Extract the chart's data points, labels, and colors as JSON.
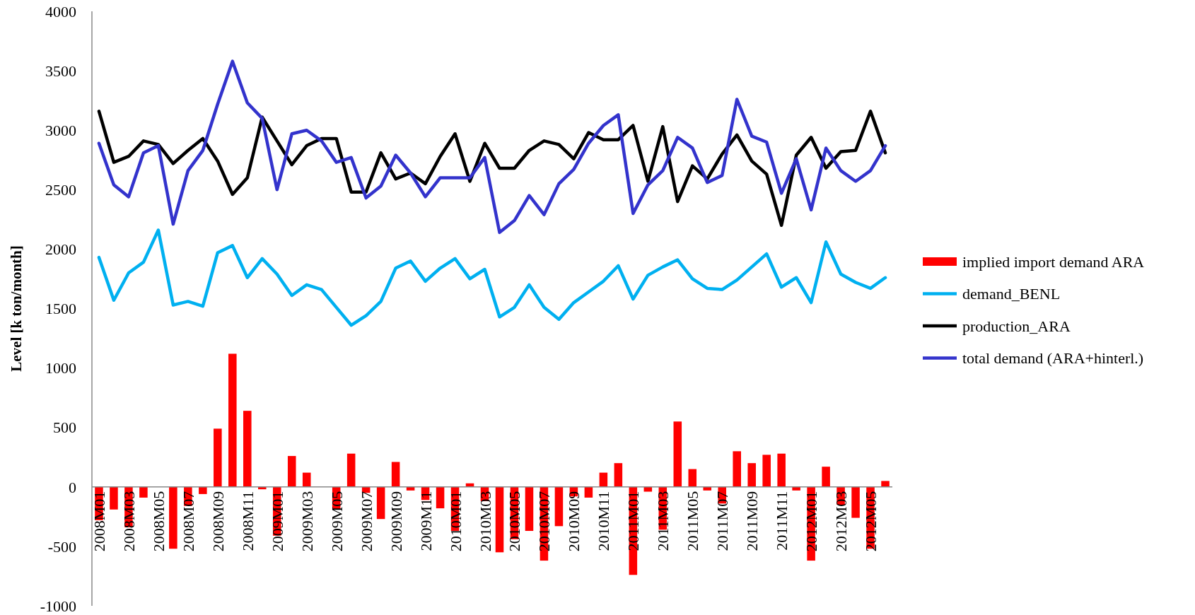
{
  "chart_data": {
    "type": "bar",
    "ylabel": "Level [k ton/month]",
    "categories": [
      "2008M01",
      null,
      "2008M03",
      null,
      "2008M05",
      null,
      "2008M07",
      null,
      "2008M09",
      null,
      "2008M11",
      null,
      "2009M01",
      null,
      "2009M03",
      null,
      "2009M05",
      null,
      "2009M07",
      null,
      "2009M09",
      null,
      "2009M11",
      null,
      "2010M01",
      null,
      "2010M03",
      null,
      "2010M05",
      null,
      "2010M07",
      null,
      "2010M09",
      null,
      "2010M11",
      null,
      "2011M01",
      null,
      "2011M03",
      null,
      "2011M05",
      null,
      "2011M07",
      null,
      "2011M09",
      null,
      "2011M11",
      null,
      "2012M01",
      null,
      "2012M03",
      null,
      "2012M05",
      null
    ],
    "series": [
      {
        "name": "implied import demand ARA",
        "color": "#ff0000",
        "values": [
          -280,
          -190,
          -340,
          -90,
          null,
          -520,
          -160,
          -60,
          490,
          1120,
          640,
          -20,
          -410,
          260,
          120,
          null,
          -190,
          280,
          -50,
          -270,
          210,
          -30,
          -110,
          -180,
          -370,
          30,
          -120,
          -550,
          -440,
          -370,
          -620,
          -330,
          -80,
          -90,
          120,
          200,
          -740,
          -40,
          -360,
          550,
          150,
          -30,
          -140,
          300,
          200,
          270,
          280,
          -30,
          -620,
          170,
          -150,
          -260,
          -520,
          50
        ]
      },
      {
        "name": "demand_BENL",
        "type": "line",
        "color": "#00b0f0",
        "values": [
          1930,
          1570,
          1800,
          1890,
          2160,
          1530,
          1560,
          1520,
          1970,
          2030,
          1760,
          1920,
          1790,
          1610,
          1700,
          1660,
          1510,
          1360,
          1440,
          1560,
          1840,
          1900,
          1730,
          1840,
          1920,
          1750,
          1830,
          1430,
          1510,
          1700,
          1510,
          1410,
          1550,
          1640,
          1730,
          1860,
          1580,
          1780,
          1850,
          1910,
          1750,
          1670,
          1660,
          1740,
          1850,
          1960,
          1680,
          1760,
          1550,
          2060,
          1790,
          1720,
          1670,
          1760
        ]
      },
      {
        "name": "production_ARA",
        "type": "line",
        "color": "#000000",
        "values": [
          3160,
          2730,
          2780,
          2910,
          2880,
          2720,
          2830,
          2930,
          2740,
          2460,
          2600,
          3110,
          2910,
          2710,
          2870,
          2930,
          2930,
          2480,
          2480,
          2810,
          2590,
          2640,
          2550,
          2780,
          2970,
          2570,
          2890,
          2680,
          2680,
          2830,
          2910,
          2880,
          2760,
          2980,
          2920,
          2920,
          3040,
          2570,
          3030,
          2400,
          2700,
          2590,
          2800,
          2960,
          2740,
          2630,
          2200,
          2790,
          2940,
          2680,
          2820,
          2830,
          3160,
          2810
        ]
      },
      {
        "name": "total demand (ARA+hinterl.)",
        "type": "line",
        "color": "#3333cc",
        "values": [
          2890,
          2540,
          2440,
          2810,
          2870,
          2210,
          2660,
          2830,
          3220,
          3580,
          3230,
          3100,
          2500,
          2970,
          3000,
          2910,
          2730,
          2770,
          2430,
          2530,
          2790,
          2640,
          2440,
          2600,
          2600,
          2600,
          2770,
          2140,
          2240,
          2450,
          2290,
          2550,
          2670,
          2890,
          3040,
          3130,
          2300,
          2540,
          2660,
          2940,
          2850,
          2560,
          2620,
          3260,
          2950,
          2900,
          2470,
          2760,
          2330,
          2850,
          2660,
          2570,
          2660,
          2870
        ]
      }
    ],
    "ylim": [
      -1000,
      4000
    ],
    "yticks": [
      -1000,
      -500,
      0,
      500,
      1000,
      1500,
      2000,
      2500,
      3000,
      3500,
      4000
    ],
    "legend": "right"
  }
}
